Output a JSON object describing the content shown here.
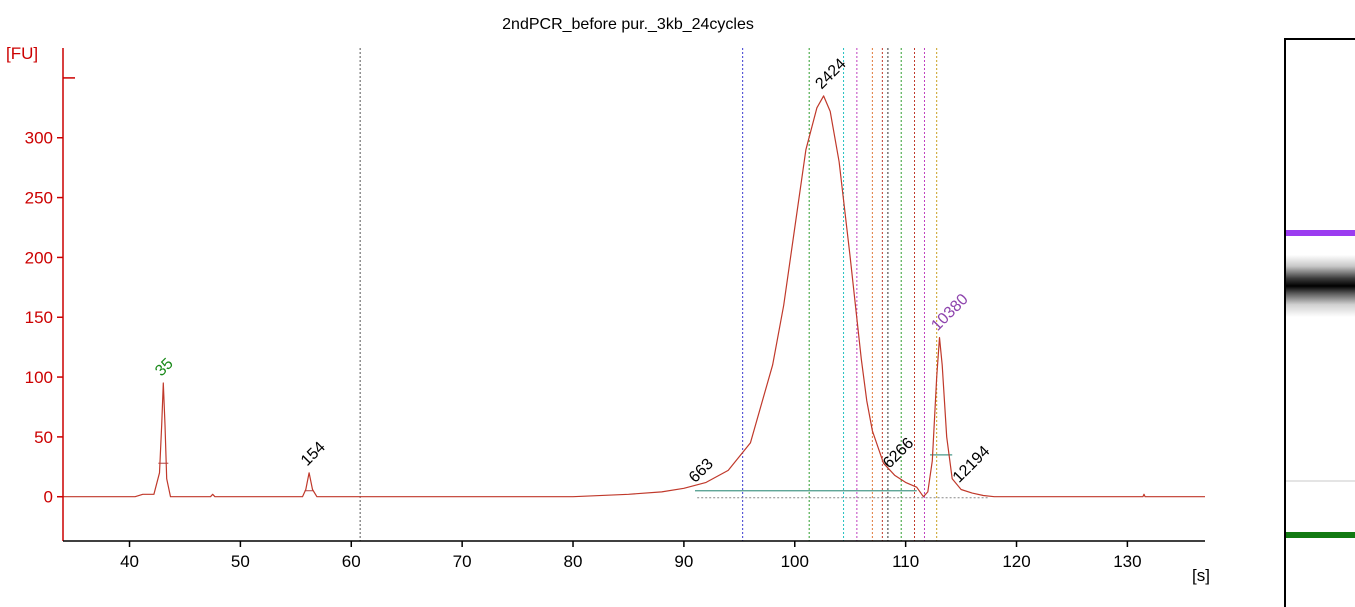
{
  "chart_data": {
    "type": "line",
    "title": "2ndPCR_before pur._3kb_24cycles",
    "xlabel": "[s]",
    "ylabel": "[FU]",
    "xlim": [
      34,
      137
    ],
    "ylim": [
      -37,
      375
    ],
    "x_ticks": [
      40,
      50,
      60,
      70,
      80,
      90,
      100,
      110,
      120,
      130
    ],
    "y_ticks": [
      0,
      50,
      100,
      150,
      200,
      250,
      300
    ],
    "grid": false,
    "series": [
      {
        "color": "#c0392b",
        "points": [
          [
            34,
            0
          ],
          [
            40.5,
            0
          ],
          [
            41.2,
            2
          ],
          [
            42.2,
            2
          ],
          [
            42.7,
            20
          ],
          [
            42.9,
            60
          ],
          [
            43.05,
            95
          ],
          [
            43.2,
            60
          ],
          [
            43.35,
            15
          ],
          [
            43.7,
            0
          ],
          [
            47.3,
            0
          ],
          [
            47.5,
            2
          ],
          [
            47.7,
            0
          ],
          [
            55.6,
            0
          ],
          [
            55.9,
            6
          ],
          [
            56.2,
            20
          ],
          [
            56.5,
            6
          ],
          [
            56.9,
            0
          ],
          [
            70,
            0
          ],
          [
            80,
            0
          ],
          [
            85,
            2
          ],
          [
            88,
            4
          ],
          [
            90,
            7
          ],
          [
            92,
            12
          ],
          [
            94,
            22
          ],
          [
            96,
            45
          ],
          [
            98,
            110
          ],
          [
            99,
            160
          ],
          [
            100,
            225
          ],
          [
            101,
            290
          ],
          [
            102,
            325
          ],
          [
            102.6,
            335
          ],
          [
            103.2,
            322
          ],
          [
            104,
            280
          ],
          [
            105,
            200
          ],
          [
            106,
            115
          ],
          [
            106.5,
            80
          ],
          [
            107,
            55
          ],
          [
            108,
            28
          ],
          [
            109,
            18
          ],
          [
            110,
            12
          ],
          [
            111,
            8
          ],
          [
            111.6,
            0
          ],
          [
            112.0,
            4
          ],
          [
            112.4,
            30
          ],
          [
            112.8,
            100
          ],
          [
            113.05,
            133
          ],
          [
            113.3,
            110
          ],
          [
            113.7,
            50
          ],
          [
            114.2,
            15
          ],
          [
            115,
            6
          ],
          [
            116,
            3
          ],
          [
            117,
            1
          ],
          [
            118,
            0
          ],
          [
            125,
            0
          ],
          [
            131.4,
            0
          ],
          [
            131.5,
            2
          ],
          [
            131.6,
            0
          ],
          [
            137,
            0
          ]
        ]
      }
    ],
    "peak_labels": [
      {
        "label": "35",
        "x": 43.05,
        "y": 95,
        "color": "#1a8a1a"
      },
      {
        "label": "154",
        "x": 56.2,
        "y": 20,
        "color": "#000000"
      },
      {
        "label": "663",
        "x": 91.2,
        "y": 6,
        "color": "#000000"
      },
      {
        "label": "2424",
        "x": 102.6,
        "y": 335,
        "color": "#000000"
      },
      {
        "label": "6266",
        "x": 108.7,
        "y": 18,
        "color": "#000000"
      },
      {
        "label": "10380",
        "x": 113.05,
        "y": 133,
        "color": "#8e44ad"
      },
      {
        "label": "12194",
        "x": 115.0,
        "y": 6,
        "color": "#000000"
      }
    ],
    "marker_lines": [
      {
        "x": 60.8,
        "color": "#555555"
      },
      {
        "x": 95.3,
        "color": "#3b3bd0"
      },
      {
        "x": 101.3,
        "color": "#2e9e2e"
      },
      {
        "x": 104.4,
        "color": "#22c0c0"
      },
      {
        "x": 105.6,
        "color": "#c040c0"
      },
      {
        "x": 107.0,
        "color": "#e07a3a"
      },
      {
        "x": 107.9,
        "color": "#c0392b"
      },
      {
        "x": 108.4,
        "color": "#333333"
      },
      {
        "x": 109.6,
        "color": "#2e9e2e"
      },
      {
        "x": 110.8,
        "color": "#c0392b"
      },
      {
        "x": 111.7,
        "color": "#c040c0"
      },
      {
        "x": 112.8,
        "color": "#c8a020"
      }
    ],
    "colors": {
      "axis": "#cc0000",
      "trace": "#c0392b",
      "baseline": "#4a9a8a"
    }
  },
  "gel_lane": {
    "bands": [
      "upper-marker",
      "sample",
      "faint",
      "lower-marker"
    ],
    "colors": {
      "upper": "#9b3cf0",
      "lower": "#127a12"
    }
  }
}
